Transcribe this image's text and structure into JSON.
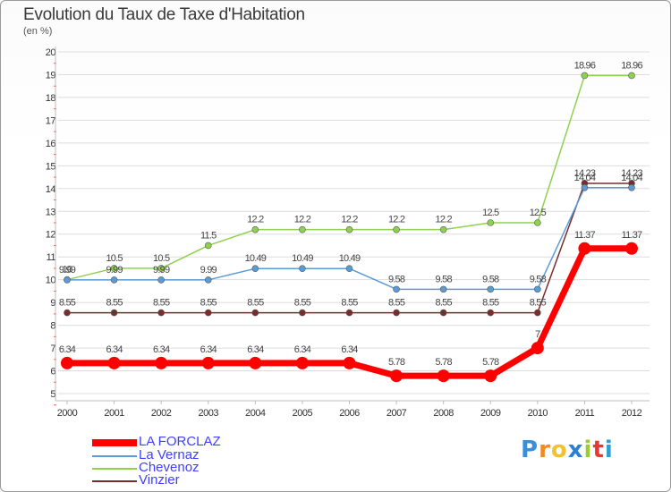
{
  "title": "Evolution du Taux de Taxe d'Habitation",
  "subtitle": "(en %)",
  "logo": {
    "letters": [
      "P",
      "r",
      "o",
      "x",
      "i",
      "t",
      "i"
    ],
    "colors": [
      "#3a8fd9",
      "#f08a24",
      "#f2c12e",
      "#2e7fd0",
      "#9acd32",
      "#e53935",
      "#2e9fd0"
    ]
  },
  "chart_data": {
    "type": "line",
    "x": [
      "2000",
      "2001",
      "2002",
      "2003",
      "2004",
      "2005",
      "2006",
      "2007",
      "2008",
      "2009",
      "2010",
      "2011",
      "2012"
    ],
    "ylim": [
      5,
      20
    ],
    "yticks": [
      "5",
      "6",
      "7",
      "8",
      "9",
      "10",
      "11",
      "12",
      "13",
      "14",
      "15",
      "16",
      "17",
      "18",
      "19",
      "20"
    ],
    "grid": "horizontal",
    "legend_position": "bottom-left",
    "series": [
      {
        "name": "Vinzier",
        "color": "#7a2b2b",
        "values": [
          8.55,
          8.55,
          8.55,
          8.55,
          8.55,
          8.55,
          8.55,
          8.55,
          8.55,
          8.55,
          8.55,
          14.23,
          14.23
        ],
        "labels": [
          "8.55",
          "8.55",
          "8.55",
          "8.55",
          "8.55",
          "8.55",
          "8.55",
          "8.55",
          "8.55",
          "8.55",
          "8.55",
          "14.23",
          "14.23"
        ]
      },
      {
        "name": "Chevenoz",
        "color": "#8fd14f",
        "values": [
          10,
          10.5,
          10.5,
          11.5,
          12.2,
          12.2,
          12.2,
          12.2,
          12.2,
          12.5,
          12.5,
          18.96,
          18.96
        ],
        "labels": [
          "10",
          "10.5",
          "10.5",
          "11.5",
          "12.2",
          "12.2",
          "12.2",
          "12.2",
          "12.2",
          "12.5",
          "12.5",
          "18.96",
          "18.96"
        ]
      },
      {
        "name": "La Vernaz",
        "color": "#5b9bd5",
        "values": [
          9.99,
          9.99,
          9.99,
          9.99,
          10.49,
          10.49,
          10.49,
          9.58,
          9.58,
          9.58,
          9.58,
          14.04,
          14.04
        ],
        "labels": [
          "9.99",
          "9.99",
          "9.99",
          "9.99",
          "10.49",
          "10.49",
          "10.49",
          "9.58",
          "9.58",
          "9.58",
          "9.58",
          "14.04",
          "14.04"
        ]
      },
      {
        "name": "LA FORCLAZ",
        "color": "#ff0000",
        "values": [
          6.34,
          6.34,
          6.34,
          6.34,
          6.34,
          6.34,
          6.34,
          5.78,
          5.78,
          5.78,
          7,
          11.37,
          11.37
        ],
        "labels": [
          "6.34",
          "6.34",
          "6.34",
          "6.34",
          "6.34",
          "6.34",
          "6.34",
          "5.78",
          "5.78",
          "5.78",
          "7",
          "11.37",
          "11.37"
        ]
      }
    ],
    "legend": [
      {
        "name": "LA FORCLAZ",
        "color": "#ff0000",
        "text_color": "#4040ff"
      },
      {
        "name": "La Vernaz",
        "color": "#5b9bd5",
        "text_color": "#4040ff"
      },
      {
        "name": "Chevenoz",
        "color": "#8fd14f",
        "text_color": "#4040ff"
      },
      {
        "name": "Vinzier",
        "color": "#7a2b2b",
        "text_color": "#4040ff"
      }
    ]
  }
}
